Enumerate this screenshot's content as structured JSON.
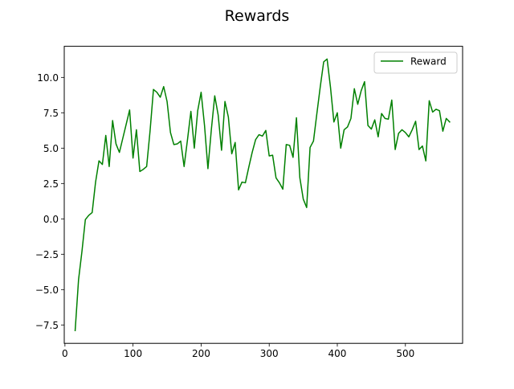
{
  "chart_data": {
    "type": "line",
    "title": "Rewards",
    "xlabel": "",
    "ylabel": "",
    "xlim": [
      -1,
      584
    ],
    "ylim": [
      -8.8,
      12.2
    ],
    "xticks": [
      0,
      100,
      200,
      300,
      400,
      500
    ],
    "yticks": [
      -7.5,
      -5.0,
      -2.5,
      0.0,
      2.5,
      5.0,
      7.5,
      10.0
    ],
    "xtick_labels": [
      "0",
      "100",
      "200",
      "300",
      "400",
      "500"
    ],
    "ytick_labels": [
      "−7.5",
      "−5.0",
      "−2.5",
      "0.0",
      "2.5",
      "5.0",
      "7.5",
      "10.0"
    ],
    "grid": false,
    "legend": {
      "position": "top-right"
    },
    "series": [
      {
        "name": "Reward",
        "color": "#008000",
        "x": [
          15,
          20,
          25,
          30,
          35,
          40,
          45,
          50,
          55,
          60,
          65,
          70,
          75,
          80,
          85,
          90,
          95,
          100,
          105,
          110,
          115,
          120,
          125,
          130,
          135,
          140,
          145,
          150,
          155,
          160,
          165,
          170,
          175,
          180,
          185,
          190,
          195,
          200,
          205,
          210,
          215,
          220,
          225,
          230,
          235,
          240,
          245,
          250,
          255,
          260,
          265,
          270,
          275,
          280,
          285,
          290,
          295,
          300,
          305,
          310,
          315,
          320,
          325,
          330,
          335,
          340,
          345,
          350,
          355,
          360,
          365,
          370,
          375,
          380,
          385,
          390,
          395,
          400,
          405,
          410,
          415,
          420,
          425,
          430,
          435,
          440,
          445,
          450,
          455,
          460,
          465,
          470,
          475,
          480,
          485,
          490,
          495,
          500,
          505,
          510,
          515,
          520,
          525,
          530,
          535,
          540,
          545,
          550,
          555,
          560,
          565
        ],
        "y": [
          -7.9,
          -4.3,
          -2.3,
          -0.05,
          0.25,
          0.45,
          2.6,
          4.1,
          3.85,
          5.9,
          3.7,
          6.95,
          5.3,
          4.7,
          5.7,
          6.7,
          7.7,
          4.3,
          6.3,
          3.35,
          3.5,
          3.7,
          6.2,
          9.15,
          8.95,
          8.6,
          9.35,
          8.3,
          6.1,
          5.25,
          5.3,
          5.5,
          3.7,
          5.6,
          7.6,
          5.0,
          7.65,
          8.95,
          6.6,
          3.55,
          6.3,
          8.7,
          7.35,
          4.85,
          8.3,
          7.2,
          4.6,
          5.4,
          2.05,
          2.6,
          2.55,
          3.65,
          4.7,
          5.6,
          5.95,
          5.85,
          6.25,
          4.45,
          4.5,
          2.9,
          2.55,
          2.1,
          5.25,
          5.2,
          4.35,
          7.15,
          2.9,
          1.4,
          0.8,
          5.05,
          5.5,
          7.45,
          9.35,
          11.1,
          11.3,
          9.3,
          6.85,
          7.5,
          5.0,
          6.3,
          6.5,
          7.1,
          9.2,
          8.1,
          9.05,
          9.7,
          6.6,
          6.35,
          7.0,
          5.8,
          7.45,
          7.1,
          7.05,
          8.4,
          4.9,
          6.05,
          6.3,
          6.1,
          5.8,
          6.3,
          6.9,
          4.9,
          5.15,
          4.1,
          8.35,
          7.55,
          7.75,
          7.65,
          6.2,
          7.1,
          6.85
        ]
      }
    ]
  }
}
